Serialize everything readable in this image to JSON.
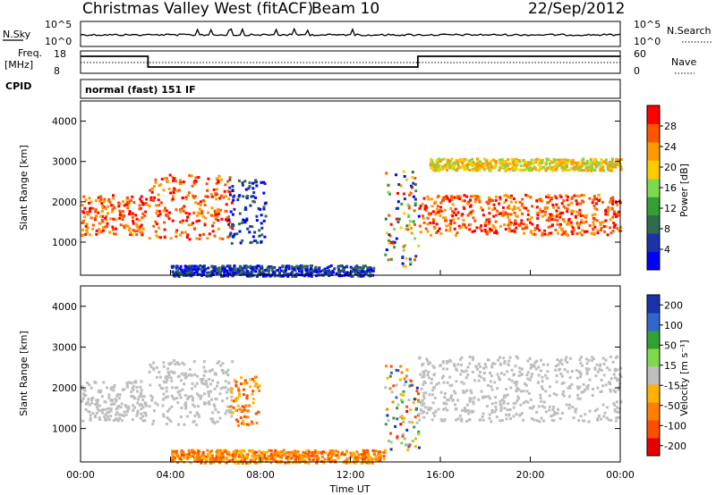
{
  "header": {
    "station": "Christmas Valley West (fitACF)",
    "beam": "Beam 10",
    "date": "22/Sep/2012"
  },
  "strips": {
    "nsky_label": "N.Sky",
    "nsky_ticks": [
      "10^5",
      "10^0"
    ],
    "nsearch_label": "N.Search",
    "freq_label": "Freq.",
    "freq_unit": "[MHz]",
    "freq_ticks": [
      "18",
      "8"
    ],
    "nave_label": "Nave",
    "nave_ticks": [
      "60",
      "0"
    ],
    "cpid_label": "CPID",
    "cpid_text": "normal (fast) 151 IF"
  },
  "colors": {
    "velocity_scale": [
      "#e60000",
      "#ff4d00",
      "#ff8000",
      "#ffb300",
      "#bebebe",
      "#7fd94c",
      "#33a033",
      "#3366cc",
      "#1a33aa"
    ],
    "power_scale": [
      "#0000ff",
      "#1a33aa",
      "#2e6b4f",
      "#33a033",
      "#7fd94c",
      "#ffcc00",
      "#ff9900",
      "#ff5500",
      "#ff0000"
    ]
  },
  "chart_data": [
    {
      "type": "heatmap",
      "panel": "power",
      "xlabel": "",
      "ylabel": "Slant Range [km]",
      "xlim": [
        "00:00",
        "24:00"
      ],
      "ylim": [
        180,
        4500
      ],
      "yticks": [
        "1000",
        "2000",
        "3000",
        "4000"
      ],
      "colorbar_label": "Power [dB]",
      "colorbar_ticks": [
        "4",
        "8",
        "12",
        "16",
        "20",
        "24",
        "28"
      ],
      "scatter_regions": [
        {
          "t": [
            0.0,
            2.9
          ],
          "r": [
            1200,
            2200
          ],
          "level": "high"
        },
        {
          "t": [
            3.0,
            6.7
          ],
          "r": [
            1100,
            2700
          ],
          "level": "high"
        },
        {
          "t": [
            6.5,
            8.2
          ],
          "r": [
            1000,
            2600
          ],
          "level": "low"
        },
        {
          "t": [
            13.5,
            15.0
          ],
          "r": [
            400,
            2800
          ],
          "level": "mixed"
        },
        {
          "t": [
            15.0,
            24.0
          ],
          "r": [
            1200,
            2200
          ],
          "level": "high"
        },
        {
          "t": [
            15.5,
            24.0
          ],
          "r": [
            2800,
            3100
          ],
          "level": "mid"
        },
        {
          "t": [
            4.0,
            13.0
          ],
          "r": [
            180,
            450
          ],
          "level": "low"
        }
      ]
    },
    {
      "type": "heatmap",
      "panel": "velocity",
      "xlabel": "Time UT",
      "ylabel": "Slant Range [km]",
      "xlim": [
        "00:00",
        "24:00"
      ],
      "ylim": [
        180,
        4500
      ],
      "xticks": [
        "00:00",
        "04:00",
        "08:00",
        "12:00",
        "16:00",
        "20:00",
        "00:00"
      ],
      "yticks": [
        "1000",
        "2000",
        "3000",
        "4000"
      ],
      "colorbar_label": "Velocity [m s⁻¹]",
      "colorbar_ticks": [
        "200",
        "100",
        "50",
        "15",
        "-15",
        "-50",
        "-100",
        "-200"
      ],
      "scatter_regions": [
        {
          "t": [
            0.0,
            2.9
          ],
          "r": [
            1200,
            2200
          ],
          "level": "ground"
        },
        {
          "t": [
            3.0,
            6.7
          ],
          "r": [
            1100,
            2700
          ],
          "level": "ground"
        },
        {
          "t": [
            6.6,
            7.9
          ],
          "r": [
            1100,
            2300
          ],
          "level": "negative"
        },
        {
          "t": [
            13.5,
            15.0
          ],
          "r": [
            500,
            2600
          ],
          "level": "mixed"
        },
        {
          "t": [
            15.0,
            24.0
          ],
          "r": [
            1200,
            2800
          ],
          "level": "ground"
        },
        {
          "t": [
            4.0,
            13.5
          ],
          "r": [
            180,
            500
          ],
          "level": "negative"
        }
      ]
    }
  ]
}
